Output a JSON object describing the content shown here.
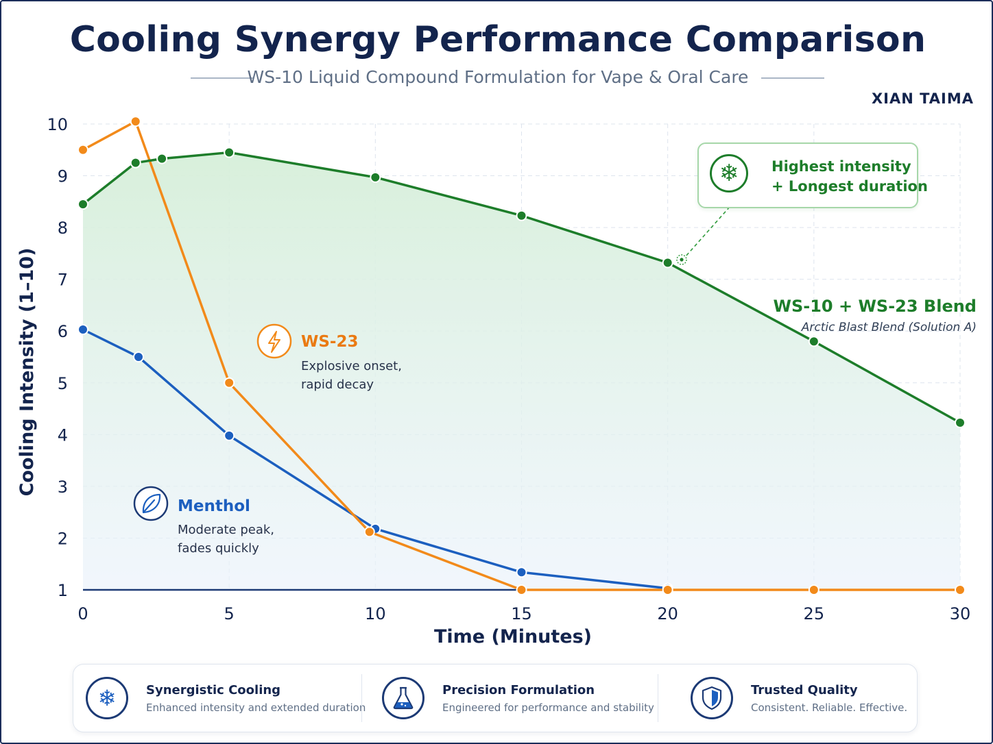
{
  "header": {
    "title": "Cooling Synergy Performance Comparison",
    "subtitle": "WS-10 Liquid Compound Formulation for Vape & Oral Care",
    "brand": "XIAN TAIMA"
  },
  "chart_data": {
    "type": "line",
    "xlabel": "Time (Minutes)",
    "ylabel": "Cooling Intensity (1–10)",
    "xlim": [
      0,
      30
    ],
    "ylim": [
      1,
      10
    ],
    "x_ticks": [
      0,
      5,
      10,
      15,
      20,
      25,
      30
    ],
    "y_ticks": [
      1,
      2,
      3,
      4,
      5,
      6,
      7,
      8,
      9,
      10
    ],
    "grid": true,
    "series": [
      {
        "name": "WS-10 + WS-23 Blend",
        "color": "#1d7d2a",
        "points": [
          [
            0,
            8.45
          ],
          [
            1.8,
            9.25
          ],
          [
            2.7,
            9.33
          ],
          [
            5,
            9.45
          ],
          [
            10,
            8.97
          ],
          [
            15,
            8.23
          ],
          [
            20,
            7.32
          ],
          [
            25,
            5.8
          ],
          [
            30,
            4.23
          ]
        ]
      },
      {
        "name": "WS-23",
        "color": "#f28a1a",
        "points": [
          [
            0,
            9.5
          ],
          [
            1.8,
            10.05
          ],
          [
            5,
            5.0
          ],
          [
            9.8,
            2.12
          ],
          [
            15,
            1.0
          ],
          [
            20,
            1.0
          ],
          [
            25,
            1.0
          ],
          [
            30,
            1.0
          ]
        ]
      },
      {
        "name": "Menthol",
        "color": "#1c5fbf",
        "points": [
          [
            0,
            6.03
          ],
          [
            1.9,
            5.5
          ],
          [
            5,
            3.98
          ],
          [
            10,
            2.18
          ],
          [
            15,
            1.34
          ],
          [
            20,
            1.03
          ]
        ]
      }
    ],
    "annotations": {
      "blend": {
        "title": "WS-10 + WS-23 Blend",
        "subtitle": "Arctic Blast Blend (Solution A)"
      },
      "ws23": {
        "title": "WS-23",
        "line1": "Explosive onset,",
        "line2": "rapid decay",
        "icon": "lightning-icon"
      },
      "menthol": {
        "title": "Menthol",
        "line1": "Moderate peak,",
        "line2": "fades quickly",
        "icon": "leaf-icon"
      },
      "callout": {
        "line1": "Highest intensity",
        "line2": "+ Longest duration",
        "icon": "snowflake-icon"
      }
    }
  },
  "features": [
    {
      "title": "Synergistic Cooling",
      "desc": "Enhanced intensity and extended duration",
      "icon": "snowflake-icon"
    },
    {
      "title": "Precision Formulation",
      "desc": "Engineered for performance and stability",
      "icon": "flask-icon"
    },
    {
      "title": "Trusted Quality",
      "desc": "Consistent. Reliable. Effective.",
      "icon": "shield-icon"
    }
  ]
}
